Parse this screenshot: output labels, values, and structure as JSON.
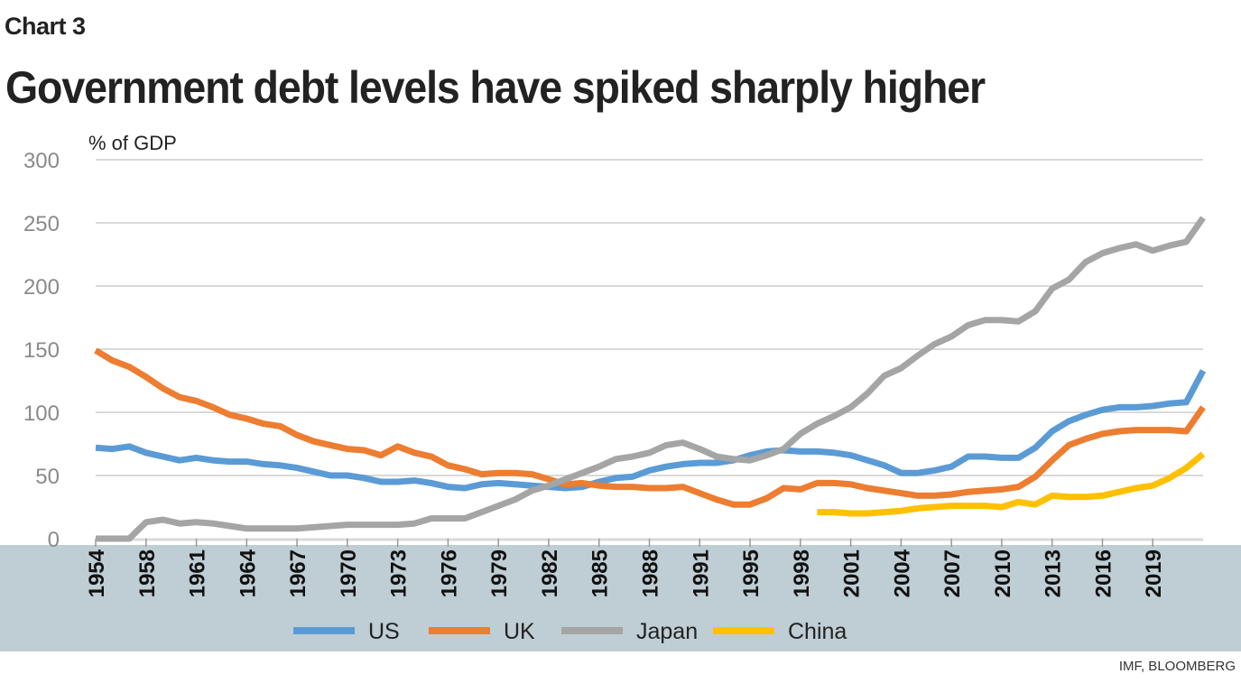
{
  "header": {
    "kicker": "Chart 3",
    "title": "Government debt levels have spiked sharply higher"
  },
  "source": "IMF, BLOOMBERG",
  "chart_data": {
    "type": "line",
    "title": "Government debt levels have spiked sharply higher",
    "ylabel": "% of GDP",
    "xlabel": "",
    "ylim": [
      0,
      300
    ],
    "yticks": [
      0,
      50,
      100,
      150,
      200,
      250,
      300
    ],
    "grid": true,
    "legend": "bottom",
    "categories": [
      "1954",
      "",
      "",
      "1958",
      "",
      "",
      "1961",
      "",
      "",
      "1964",
      "",
      "",
      "1967",
      "",
      "",
      "1970",
      "",
      "",
      "1973",
      "",
      "",
      "1976",
      "",
      "",
      "1979",
      "",
      "",
      "1982",
      "",
      "",
      "1985",
      "",
      "",
      "1988",
      "",
      "",
      "1991",
      "",
      "",
      "1995",
      "",
      "",
      "1998",
      "",
      "",
      "2001",
      "",
      "",
      "2004",
      "",
      "",
      "2007",
      "",
      "",
      "2010",
      "",
      "",
      "2013",
      "",
      "",
      "2016",
      "",
      "",
      "2019",
      "",
      "",
      ""
    ],
    "series": [
      {
        "name": "US",
        "color": "#5b9bd5",
        "values": [
          72,
          71,
          73,
          68,
          65,
          62,
          64,
          62,
          61,
          61,
          59,
          58,
          56,
          53,
          50,
          50,
          48,
          45,
          45,
          46,
          44,
          41,
          40,
          43,
          44,
          43,
          42,
          41,
          40,
          41,
          45,
          48,
          49,
          54,
          57,
          59,
          60,
          60,
          62,
          66,
          69,
          70,
          69,
          69,
          68,
          66,
          62,
          58,
          52,
          52,
          54,
          57,
          65,
          65,
          64,
          64,
          72,
          85,
          93,
          98,
          102,
          104,
          104,
          105,
          107,
          108,
          133
        ]
      },
      {
        "name": "UK",
        "color": "#ed7d31",
        "values": [
          149,
          141,
          136,
          128,
          119,
          112,
          109,
          104,
          98,
          95,
          91,
          89,
          82,
          77,
          74,
          71,
          70,
          66,
          73,
          68,
          65,
          58,
          55,
          51,
          52,
          52,
          51,
          47,
          43,
          44,
          42,
          41,
          41,
          40,
          40,
          41,
          36,
          31,
          27,
          27,
          32,
          40,
          39,
          44,
          44,
          43,
          40,
          38,
          36,
          34,
          34,
          35,
          37,
          38,
          39,
          41,
          49,
          62,
          74,
          79,
          83,
          85,
          86,
          86,
          86,
          85,
          104
        ]
      },
      {
        "name": "Japan",
        "color": "#a5a5a5",
        "values": [
          0,
          0,
          0,
          13,
          15,
          12,
          13,
          12,
          10,
          8,
          8,
          8,
          8,
          9,
          10,
          11,
          11,
          11,
          11,
          12,
          16,
          16,
          16,
          21,
          26,
          31,
          38,
          42,
          47,
          52,
          57,
          63,
          65,
          68,
          74,
          76,
          71,
          65,
          63,
          62,
          66,
          71,
          83,
          91,
          97,
          104,
          115,
          129,
          135,
          145,
          154,
          160,
          169,
          173,
          173,
          172,
          180,
          198,
          205,
          219,
          226,
          230,
          233,
          228,
          232,
          235,
          254
        ]
      },
      {
        "name": "China",
        "color": "#ffc000",
        "values": [
          null,
          null,
          null,
          null,
          null,
          null,
          null,
          null,
          null,
          null,
          null,
          null,
          null,
          null,
          null,
          null,
          null,
          null,
          null,
          null,
          null,
          null,
          null,
          null,
          null,
          null,
          null,
          null,
          null,
          null,
          null,
          null,
          null,
          null,
          null,
          null,
          null,
          null,
          null,
          null,
          null,
          null,
          null,
          21,
          21,
          20,
          20,
          21,
          22,
          24,
          25,
          26,
          26,
          26,
          25,
          29,
          27,
          34,
          33,
          33,
          34,
          37,
          40,
          42,
          48,
          56,
          67
        ]
      }
    ]
  }
}
